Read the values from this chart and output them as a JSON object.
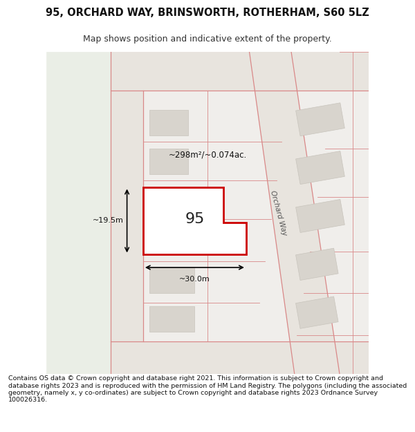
{
  "title_line1": "95, ORCHARD WAY, BRINSWORTH, ROTHERHAM, S60 5LZ",
  "title_line2": "Map shows position and indicative extent of the property.",
  "footer_text": "Contains OS data © Crown copyright and database right 2021. This information is subject to Crown copyright and database rights 2023 and is reproduced with the permission of HM Land Registry. The polygons (including the associated geometry, namely x, y co-ordinates) are subject to Crown copyright and database rights 2023 Ordnance Survey 100026316.",
  "bg_map_color": "#f2f4ef",
  "bg_color": "#ffffff",
  "road_fill": "#e8e0d8",
  "building_fill": "#d4cfc8",
  "highlight_fill": "#ffffff",
  "highlight_stroke": "#cc0000",
  "road_line_color": "#e8a0a0",
  "dim_color": "#111111",
  "area_label": "~298m²/~0.074ac.",
  "number_label": "95",
  "dim_width": "~30.0m",
  "dim_height": "~19.5m",
  "orchard_way_label": "Orchard Way",
  "map_xlim": [
    0,
    1
  ],
  "map_ylim": [
    0,
    1
  ]
}
